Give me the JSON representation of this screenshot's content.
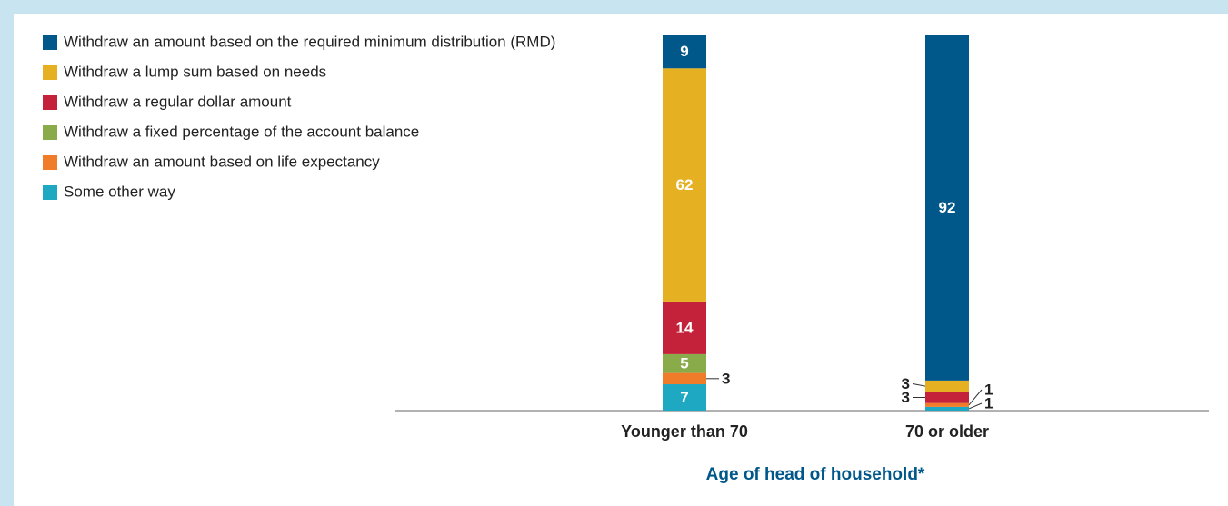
{
  "chart_data": {
    "type": "stacked-bar",
    "categories": [
      "Younger than 70",
      "70 or older"
    ],
    "x_label": "Age of head of household*",
    "series": [
      {
        "name": "Withdraw an amount based on the required minimum distribution (RMD)",
        "color": "#00578a",
        "values": [
          9,
          92
        ]
      },
      {
        "name": "Withdraw a lump sum based on needs",
        "color": "#e5b022",
        "values": [
          62,
          3
        ]
      },
      {
        "name": "Withdraw a regular dollar amount",
        "color": "#c4213a",
        "values": [
          14,
          3
        ]
      },
      {
        "name": "Withdraw a fixed percentage of the account balance",
        "color": "#8aab4a",
        "values": [
          5,
          0
        ]
      },
      {
        "name": "Withdraw an amount based on life expectancy",
        "color": "#f07c2a",
        "values": [
          3,
          1
        ]
      },
      {
        "name": "Some other way",
        "color": "#1ea8c2",
        "values": [
          7,
          1
        ]
      }
    ]
  }
}
